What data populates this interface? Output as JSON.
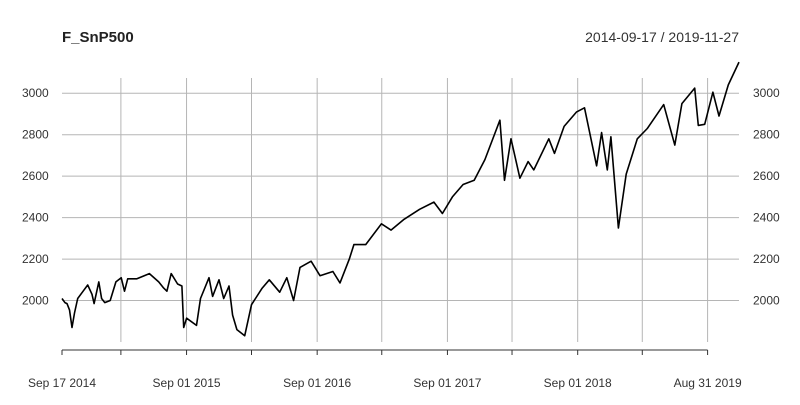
{
  "chart_data": {
    "type": "line",
    "title": "F_SnP500",
    "date_range": "2014-09-17 / 2019-11-27",
    "x_range": [
      "2014-09-17",
      "2019-11-27"
    ],
    "ylim": [
      1800,
      3170
    ],
    "grid": true,
    "y_ticks": [
      2000,
      2200,
      2400,
      2600,
      2800,
      3000
    ],
    "y_tick_labels": [
      "2000",
      "2200",
      "2400",
      "2600",
      "2800",
      "3000"
    ],
    "x_ticks": [
      "2014-09-17",
      "2015-09-01",
      "2016-09-01",
      "2017-09-01",
      "2018-09-01",
      "2019-08-31"
    ],
    "x_tick_labels": [
      "Sep 17 2014",
      "Sep 01 2015",
      "Sep 01 2016",
      "Sep 01 2017",
      "Sep 01 2018",
      "Aug 31 2019"
    ],
    "x_minor_ticks": [
      "2015-03-01",
      "2016-03-01",
      "2017-03-01",
      "2018-03-01",
      "2019-03-01"
    ],
    "series": [
      {
        "color": "#000000",
        "points": [
          [
            "2014-09-17",
            2010
          ],
          [
            "2014-09-25",
            1990
          ],
          [
            "2014-10-01",
            1985
          ],
          [
            "2014-10-08",
            1955
          ],
          [
            "2014-10-15",
            1870
          ],
          [
            "2014-10-22",
            1940
          ],
          [
            "2014-10-31",
            2010
          ],
          [
            "2014-11-15",
            2045
          ],
          [
            "2014-11-28",
            2075
          ],
          [
            "2014-12-10",
            2030
          ],
          [
            "2014-12-16",
            1985
          ],
          [
            "2014-12-29",
            2090
          ],
          [
            "2015-01-06",
            2010
          ],
          [
            "2015-01-15",
            1990
          ],
          [
            "2015-01-30",
            2000
          ],
          [
            "2015-02-15",
            2090
          ],
          [
            "2015-03-02",
            2110
          ],
          [
            "2015-03-11",
            2045
          ],
          [
            "2015-03-20",
            2105
          ],
          [
            "2015-04-15",
            2105
          ],
          [
            "2015-05-20",
            2130
          ],
          [
            "2015-06-15",
            2090
          ],
          [
            "2015-06-29",
            2060
          ],
          [
            "2015-07-08",
            2045
          ],
          [
            "2015-07-20",
            2130
          ],
          [
            "2015-08-07",
            2080
          ],
          [
            "2015-08-19",
            2070
          ],
          [
            "2015-08-24",
            1870
          ],
          [
            "2015-09-01",
            1915
          ],
          [
            "2015-09-29",
            1880
          ],
          [
            "2015-10-10",
            2010
          ],
          [
            "2015-11-03",
            2110
          ],
          [
            "2015-11-13",
            2020
          ],
          [
            "2015-12-01",
            2100
          ],
          [
            "2015-12-14",
            2010
          ],
          [
            "2015-12-29",
            2070
          ],
          [
            "2016-01-08",
            1930
          ],
          [
            "2016-01-20",
            1860
          ],
          [
            "2016-02-11",
            1830
          ],
          [
            "2016-03-01",
            1980
          ],
          [
            "2016-03-31",
            2060
          ],
          [
            "2016-04-20",
            2100
          ],
          [
            "2016-05-19",
            2040
          ],
          [
            "2016-06-08",
            2110
          ],
          [
            "2016-06-27",
            2000
          ],
          [
            "2016-07-15",
            2160
          ],
          [
            "2016-08-15",
            2190
          ],
          [
            "2016-09-09",
            2120
          ],
          [
            "2016-10-15",
            2140
          ],
          [
            "2016-11-04",
            2085
          ],
          [
            "2016-11-30",
            2200
          ],
          [
            "2016-12-13",
            2270
          ],
          [
            "2017-01-15",
            2270
          ],
          [
            "2017-02-28",
            2370
          ],
          [
            "2017-03-27",
            2340
          ],
          [
            "2017-05-01",
            2390
          ],
          [
            "2017-06-15",
            2440
          ],
          [
            "2017-07-25",
            2475
          ],
          [
            "2017-08-18",
            2420
          ],
          [
            "2017-09-15",
            2500
          ],
          [
            "2017-10-15",
            2560
          ],
          [
            "2017-11-15",
            2580
          ],
          [
            "2017-12-15",
            2680
          ],
          [
            "2018-01-26",
            2870
          ],
          [
            "2018-02-08",
            2580
          ],
          [
            "2018-02-26",
            2780
          ],
          [
            "2018-03-23",
            2590
          ],
          [
            "2018-04-15",
            2670
          ],
          [
            "2018-05-01",
            2630
          ],
          [
            "2018-06-12",
            2780
          ],
          [
            "2018-06-28",
            2710
          ],
          [
            "2018-07-25",
            2840
          ],
          [
            "2018-08-29",
            2910
          ],
          [
            "2018-09-20",
            2930
          ],
          [
            "2018-10-24",
            2650
          ],
          [
            "2018-11-07",
            2810
          ],
          [
            "2018-11-23",
            2630
          ],
          [
            "2018-12-03",
            2790
          ],
          [
            "2018-12-24",
            2350
          ],
          [
            "2019-01-15",
            2610
          ],
          [
            "2019-02-15",
            2780
          ],
          [
            "2019-03-15",
            2830
          ],
          [
            "2019-04-30",
            2945
          ],
          [
            "2019-05-31",
            2750
          ],
          [
            "2019-06-20",
            2950
          ],
          [
            "2019-07-26",
            3025
          ],
          [
            "2019-08-05",
            2845
          ],
          [
            "2019-08-23",
            2850
          ],
          [
            "2019-09-15",
            3005
          ],
          [
            "2019-10-02",
            2890
          ],
          [
            "2019-10-28",
            3040
          ],
          [
            "2019-11-27",
            3150
          ]
        ]
      }
    ]
  }
}
